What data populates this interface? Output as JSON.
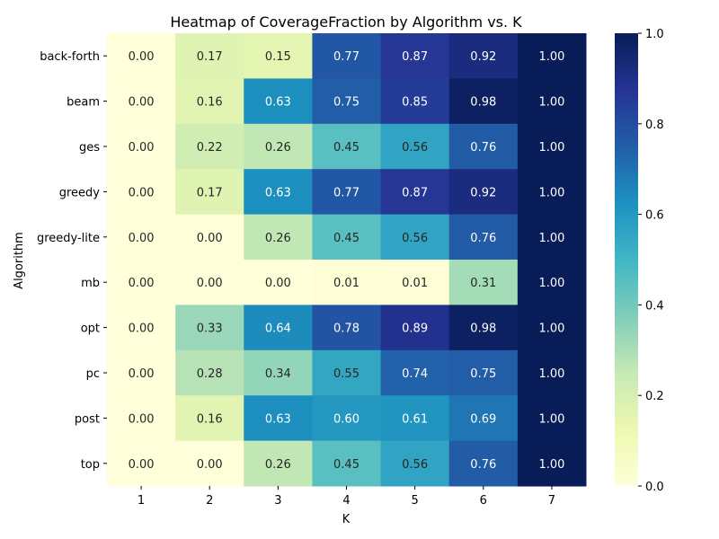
{
  "chart_data": {
    "type": "heatmap",
    "title": "Heatmap of CoverageFraction by Algorithm vs. K",
    "xlabel": "K",
    "ylabel": "Algorithm",
    "x_categories": [
      "1",
      "2",
      "3",
      "4",
      "5",
      "6",
      "7"
    ],
    "y_categories": [
      "back-forth",
      "beam",
      "ges",
      "greedy",
      "greedy-lite",
      "mb",
      "opt",
      "pc",
      "post",
      "top"
    ],
    "values": [
      [
        0.0,
        0.17,
        0.15,
        0.77,
        0.87,
        0.92,
        1.0
      ],
      [
        0.0,
        0.16,
        0.63,
        0.75,
        0.85,
        0.98,
        1.0
      ],
      [
        0.0,
        0.22,
        0.26,
        0.45,
        0.56,
        0.76,
        1.0
      ],
      [
        0.0,
        0.17,
        0.63,
        0.77,
        0.87,
        0.92,
        1.0
      ],
      [
        0.0,
        0.0,
        0.26,
        0.45,
        0.56,
        0.76,
        1.0
      ],
      [
        0.0,
        0.0,
        0.0,
        0.01,
        0.01,
        0.31,
        1.0
      ],
      [
        0.0,
        0.33,
        0.64,
        0.78,
        0.89,
        0.98,
        1.0
      ],
      [
        0.0,
        0.28,
        0.34,
        0.55,
        0.74,
        0.75,
        1.0
      ],
      [
        0.0,
        0.16,
        0.63,
        0.6,
        0.61,
        0.69,
        1.0
      ],
      [
        0.0,
        0.0,
        0.26,
        0.45,
        0.56,
        0.76,
        1.0
      ]
    ],
    "value_format": "2 decimals",
    "colormap": "YlGnBu",
    "vmin": 0.0,
    "vmax": 1.0,
    "colorbar_ticks": [
      "0.0",
      "0.2",
      "0.4",
      "0.6",
      "0.8",
      "1.0"
    ],
    "colorbar_tick_values": [
      0.0,
      0.2,
      0.4,
      0.6,
      0.8,
      1.0
    ],
    "grid": false,
    "colorbar_placement": "right"
  }
}
